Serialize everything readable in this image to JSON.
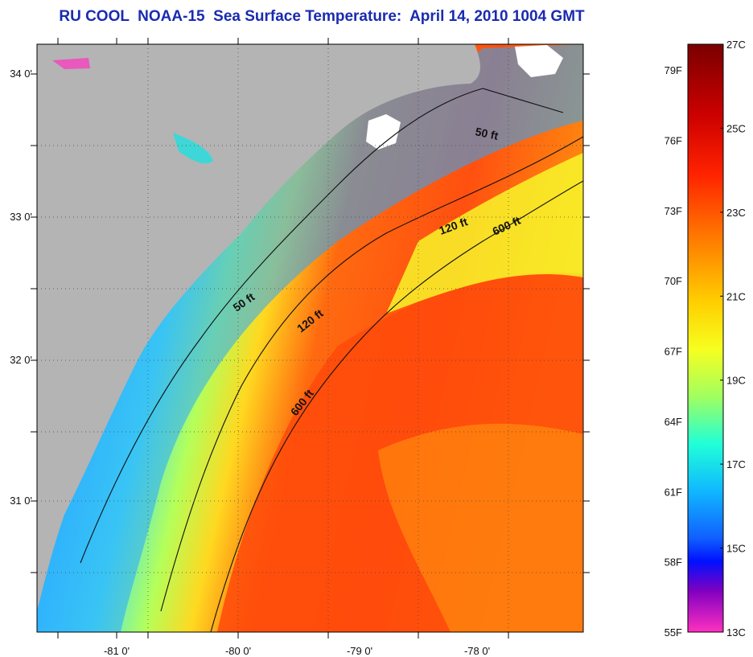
{
  "title": "RU COOL  NOAA-15  Sea Surface Temperature:  April 14, 2010 1004 GMT",
  "map": {
    "lat_labels": [
      "34 0'",
      "33 0'",
      "32 0'",
      "31 0'"
    ],
    "lon_labels": [
      "-81 0'",
      "-80 0'",
      "-79 0'",
      "-78 0'"
    ],
    "contours": [
      {
        "label": "50 ft"
      },
      {
        "label": "120 ft"
      },
      {
        "label": "600 ft"
      },
      {
        "label": "50 ft"
      },
      {
        "label": "120 ft"
      },
      {
        "label": "600 ft"
      }
    ],
    "colors": {
      "land": "#b4b4b4",
      "cloud": "#ffffff"
    }
  },
  "colorbar": {
    "fahrenheit_labels": [
      "79F",
      "76F",
      "73F",
      "70F",
      "67F",
      "64F",
      "61F",
      "58F",
      "55F"
    ],
    "celsius_labels": [
      "27C",
      "25C",
      "23C",
      "21C",
      "19C",
      "17C",
      "15C",
      "13C"
    ],
    "colors": [
      "#7a0000",
      "#cc0000",
      "#ff2200",
      "#ff7a00",
      "#ffd000",
      "#f6ff20",
      "#a0ff60",
      "#20ffd8",
      "#10b8ff",
      "#1060ff",
      "#0010ff",
      "#8000c0",
      "#ff30c0"
    ]
  }
}
